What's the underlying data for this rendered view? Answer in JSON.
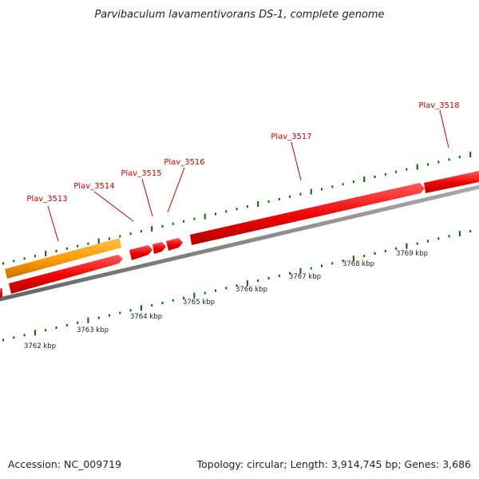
{
  "title": "Parvibaculum lavamentivorans DS-1, complete genome",
  "footer": {
    "accession": "Accession: NC_009719",
    "topology": "Topology: circular; Length: 3,914,745 bp; Genes: 3,686"
  },
  "colors": {
    "gene_forward": "#ee0000",
    "gene_highlight": "#ff9900",
    "backbone": "#888888",
    "ticks": "#006600",
    "label_lines": "#cc0000"
  },
  "gene_labels": [
    "Plav_3513",
    "Plav_3514",
    "Plav_3515",
    "Plav_3516",
    "Plav_3517",
    "Plav_3518"
  ],
  "kbp_labels": [
    "3762 kbp",
    "3763 kbp",
    "3764 kbp",
    "3765 kbp",
    "3766 kbp",
    "3767 kbp",
    "3768 kbp",
    "3769 kbp"
  ]
}
